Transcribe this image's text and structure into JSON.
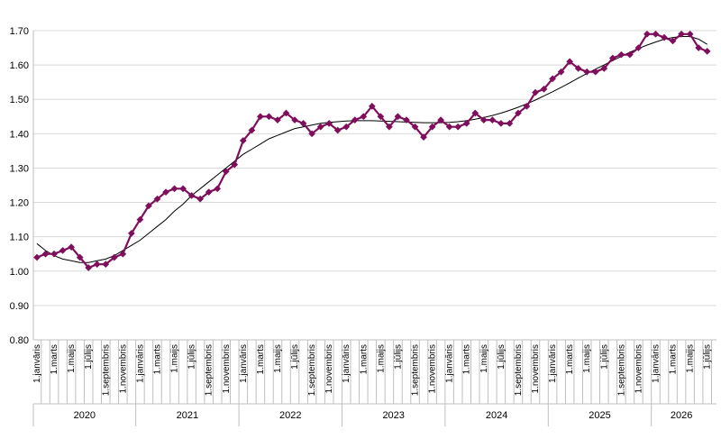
{
  "chart_data": {
    "type": "line",
    "title": "",
    "xlabel": "",
    "ylabel": "",
    "ylim": [
      0.8,
      1.7
    ],
    "yticks": [
      "0.80",
      "0.90",
      "1.00",
      "1.10",
      "1.20",
      "1.30",
      "1.40",
      "1.50",
      "1.60",
      "1.70"
    ],
    "grid": "horizontal",
    "legend": "none",
    "colors": {
      "series": "#7f0f5c",
      "trend": "#000000",
      "grid": "#d9d9d9",
      "axis": "#bfbfbf"
    },
    "x_tick_labels": [
      "1.janvāris",
      "1.marts",
      "1.maijs",
      "1.jūlijs",
      "1.septembris",
      "1.novembris",
      "1.janvāris",
      "1.marts",
      "1.maijs",
      "1.jūlijs",
      "1.septembris",
      "1.novembris",
      "1.janvāris",
      "1.marts",
      "1.maijs",
      "1.jūlijs",
      "1.septembris",
      "1.novembris",
      "1.janvāris",
      "1.marts",
      "1.maijs",
      "1.jūlijs",
      "1.septembris",
      "1.novembris",
      "1.janvāris",
      "1.marts",
      "1.maijs",
      "1.jūlijs",
      "1.septembris",
      "1.novembris",
      "1.janvāris",
      "1.marts",
      "1.maijs",
      "1.jūlijs",
      "1.septembris",
      "1.novembris",
      "1.janvāris",
      "1.marts",
      "1.maijs",
      "1.jūlijs"
    ],
    "years": [
      "2020",
      "2021",
      "2022",
      "2023",
      "2024",
      "2025",
      "2026"
    ],
    "series": [
      {
        "values": [
          1.04,
          1.05,
          1.05,
          1.06,
          1.07,
          1.04,
          1.01,
          1.02,
          1.02,
          1.04,
          1.05,
          1.11,
          1.15,
          1.19,
          1.21,
          1.23,
          1.24,
          1.24,
          1.22,
          1.21,
          1.23,
          1.24,
          1.29,
          1.31,
          1.38,
          1.41,
          1.45,
          1.45,
          1.44,
          1.46,
          1.44,
          1.43,
          1.4,
          1.42,
          1.43,
          1.41,
          1.42,
          1.44,
          1.45,
          1.48,
          1.45,
          1.42,
          1.45,
          1.44,
          1.42,
          1.39,
          1.42,
          1.44,
          1.42,
          1.42,
          1.43,
          1.46,
          1.44,
          1.44,
          1.43,
          1.43,
          1.46,
          1.48,
          1.52,
          1.53,
          1.56,
          1.58,
          1.61,
          1.59,
          1.58,
          1.58,
          1.59,
          1.62,
          1.63,
          1.63,
          1.65,
          1.69,
          1.69,
          1.68,
          1.67,
          1.69,
          1.69,
          1.65,
          1.64
        ]
      }
    ],
    "trendline": {
      "type": "polynomial",
      "values": [
        1.08,
        1.06,
        1.045,
        1.035,
        1.03,
        1.025,
        1.025,
        1.03,
        1.035,
        1.045,
        1.06,
        1.075,
        1.09,
        1.11,
        1.13,
        1.15,
        1.175,
        1.195,
        1.22,
        1.24,
        1.26,
        1.28,
        1.3,
        1.32,
        1.34,
        1.355,
        1.37,
        1.385,
        1.395,
        1.405,
        1.415,
        1.42,
        1.425,
        1.43,
        1.433,
        1.435,
        1.437,
        1.438,
        1.438,
        1.438,
        1.437,
        1.436,
        1.435,
        1.434,
        1.433,
        1.432,
        1.432,
        1.432,
        1.433,
        1.435,
        1.438,
        1.442,
        1.447,
        1.453,
        1.46,
        1.468,
        1.477,
        1.487,
        1.498,
        1.51,
        1.522,
        1.535,
        1.548,
        1.562,
        1.575,
        1.588,
        1.6,
        1.613,
        1.625,
        1.637,
        1.648,
        1.658,
        1.667,
        1.675,
        1.68,
        1.683,
        1.683,
        1.675,
        1.66
      ]
    }
  }
}
